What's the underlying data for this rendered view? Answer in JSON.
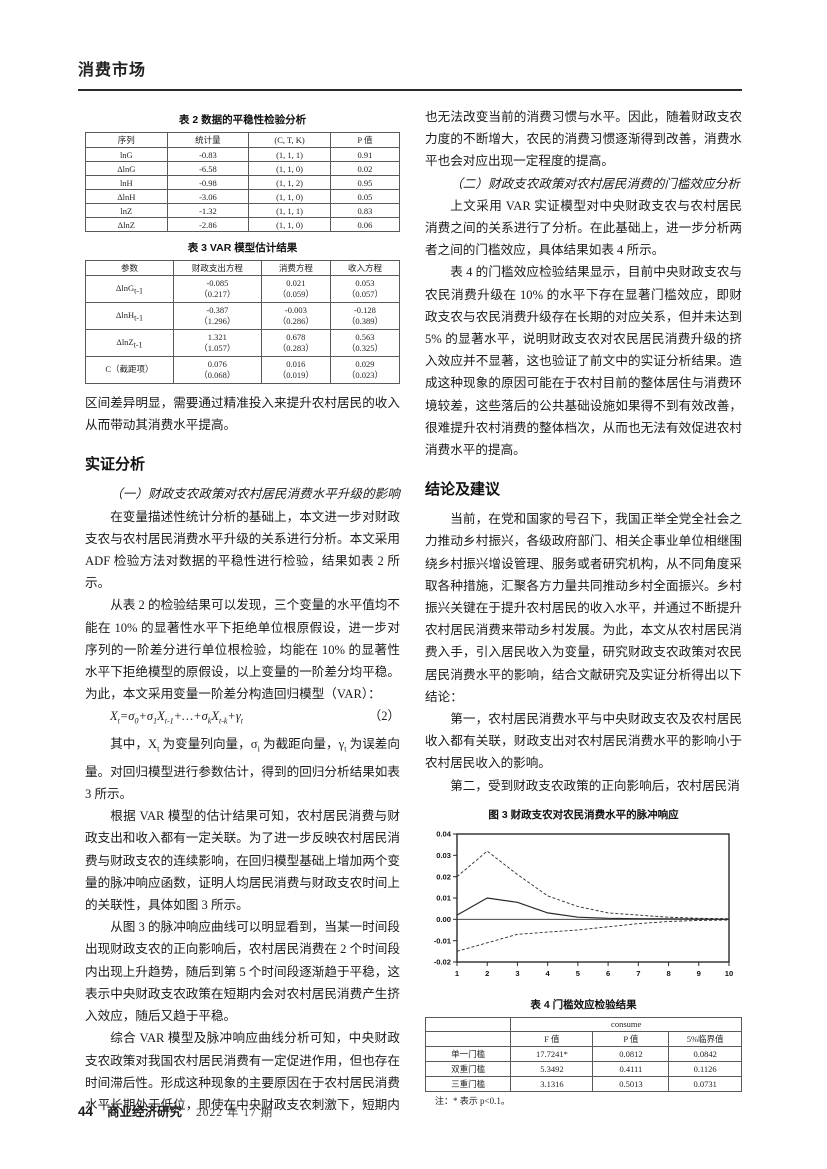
{
  "masthead": "消费市场",
  "footer": {
    "page_number": "44",
    "journal": "商业经济研究",
    "issue": "2022 年 17 期"
  },
  "left": {
    "table2": {
      "caption": "表 2  数据的平稳性检验分析",
      "headers": [
        "序列",
        "统计量",
        "(C, T, K)",
        "P 值"
      ],
      "rows": [
        [
          "lnG",
          "-0.83",
          "(1, 1, 1)",
          "0.91"
        ],
        [
          "ΔlnG",
          "-6.58",
          "(1, 1, 0)",
          "0.02"
        ],
        [
          "lnH",
          "-0.98",
          "(1, 1, 2)",
          "0.95"
        ],
        [
          "ΔlnH",
          "-3.06",
          "(1, 1, 0)",
          "0.05"
        ],
        [
          "lnZ",
          "-1.32",
          "(1, 1, 1)",
          "0.83"
        ],
        [
          "ΔlnZ",
          "-2.86",
          "(1, 1, 0)",
          "0.06"
        ]
      ]
    },
    "table3": {
      "caption": "表 3  VAR 模型估计结果",
      "headers": [
        "参数",
        "财政支出方程",
        "消费方程",
        "收入方程"
      ],
      "rows": [
        {
          "param_base": "ΔlnG",
          "param_sub": "t-1",
          "cells": [
            [
              "-0.085",
              "（0.217）"
            ],
            [
              "0.021",
              "（0.059）"
            ],
            [
              "0.053",
              "（0.057）"
            ]
          ]
        },
        {
          "param_base": "ΔlnH",
          "param_sub": "t-1",
          "cells": [
            [
              "-0.387",
              "（1.296）"
            ],
            [
              "-0.003",
              "（0.286）"
            ],
            [
              "-0.128",
              "（0.389）"
            ]
          ]
        },
        {
          "param_base": "ΔlnZ",
          "param_sub": "t-1",
          "cells": [
            [
              "1.321",
              "（1.057）"
            ],
            [
              "0.678",
              "（0.283）"
            ],
            [
              "0.563",
              "（0.325）"
            ]
          ]
        },
        {
          "param_base": "C（截距项）",
          "param_sub": "",
          "cells": [
            [
              "0.076",
              "（0.068）"
            ],
            [
              "0.016",
              "（0.019）"
            ],
            [
              "0.029",
              "（0.023）"
            ]
          ]
        }
      ]
    },
    "p_cont": "区间差异明显，需要通过精准投入来提升农村居民的收入从而带动其消费水平提高。",
    "heading_empirical": "实证分析",
    "sub1": "（一）财政支农政策对农村居民消费水平升级的影响",
    "p1": "在变量描述性统计分析的基础上，本文进一步对财政支农与农村居民消费水平升级的关系进行分析。本文采用 ADF 检验方法对数据的平稳性进行检验，结果如表 2 所示。",
    "p2": "从表 2 的检验结果可以发现，三个变量的水平值均不能在 10% 的显著性水平下拒绝单位根原假设，进一步对序列的一阶差分进行单位根检验，均能在 10% 的显著性水平下拒绝模型的原假设，以上变量的一阶差分均平稳。为此，本文采用变量一阶差分构造回归模型（VAR）：",
    "formula": {
      "parts": [
        "X",
        "t",
        "=σ",
        "0",
        "+σ",
        "1",
        "X",
        "t-1",
        "+…+σ",
        "k",
        "X",
        "t-k",
        "+γ",
        "t"
      ],
      "number": "（2）"
    },
    "p3": [
      "其中，X",
      "t",
      " 为变量列向量，σ",
      "i",
      " 为截距向量，γ",
      "t",
      " 为误差向量。对回归模型进行参数估计，得到的回归分析结果如表 3 所示。"
    ],
    "p4": "根据 VAR 模型的估计结果可知，农村居民消费与财政支出和收入都有一定关联。为了进一步反映农村居民消费与财政支农的连续影响，在回归模型基础上增加两个变量的脉冲响应函数，证明人均居民消费与财政支农时间上的关联性，具体如图 3 所示。",
    "p5": "从图 3 的脉冲响应曲线可以明显看到，当某一时间段出现财政支农的正向影响后，农村居民消费在 2 个时间段内出现上升趋势，随后到第 5 个时间段逐渐趋于平稳，这表示中央财政支农政策在短期内会对农村居民消费产生挤入效应，随后又趋于平稳。",
    "p6": "综合 VAR 模型及脉冲响应曲线分析可知，中央财政支农政策对我国农村居民消费有一定促进作用，但也存在时间滞后性。形成这种现象的主要原因在于农村居民消费水平长期处于低位，即使在中央财政支农刺激下，短期内"
  },
  "right": {
    "p1": "也无法改变当前的消费习惯与水平。因此，随着财政支农力度的不断增大，农民的消费习惯逐渐得到改善，消费水平也会对应出现一定程度的提高。",
    "sub2": "（二）财政支农政策对农村居民消费的门槛效应分析",
    "p2": "上文采用 VAR 实证模型对中央财政支农与农村居民消费之间的关系进行了分析。在此基础上，进一步分析两者之间的门槛效应，具体结果如表 4 所示。",
    "p3": "表 4 的门槛效应检验结果显示，目前中央财政支农与农民消费升级在 10% 的水平下存在显著门槛效应，即财政支农与农民消费升级存在长期的对应关系，但并未达到 5% 的显著水平，说明财政支农对农民居民消费升级的挤入效应并不显著，这也验证了前文中的实证分析结果。造成这种现象的原因可能在于农村目前的整体居住与消费环境较差，这些落后的公共基础设施如果得不到有效改善，很难提升农村消费的整体档次，从而也无法有效促进农村消费水平的提高。",
    "heading_conclusion": "结论及建议",
    "p4": "当前，在党和国家的号召下，我国正举全党全社会之力推动乡村振兴，各级政府部门、相关企事业单位相继围绕乡村振兴增设管理、服务或者研究机构，从不同角度采取各种措施，汇聚各方力量共同推动乡村全面振兴。乡村振兴关键在于提升农村居民的收入水平，并通过不断提升农村居民消费来带动乡村发展。为此，本文从农村居民消费入手，引入居民收入为变量，研究财政支农政策对农民居民消费水平的影响，结合文献研究及实证分析得出以下结论：",
    "p5": "第一，农村居民消费水平与中央财政支农及农村居民收入都有关联，财政支出对农村居民消费水平的影响小于农村居民收入的影响。",
    "p6": "第二，受到财政支农政策的正向影响后，农村居民消",
    "figure3_caption": "图 3  财政支农对农民消费水平的脉冲响应",
    "table4": {
      "caption": "表 4  门槛效应检验结果",
      "group_header": "consume",
      "headers": [
        "F 值",
        "P 值",
        "5%临界值"
      ],
      "rows": [
        [
          "单一门槛",
          "17.7241*",
          "0.0812",
          "0.0842"
        ],
        [
          "双重门槛",
          "5.3492",
          "0.4111",
          "0.1126"
        ],
        [
          "三重门槛",
          "3.1316",
          "0.5013",
          "0.0731"
        ]
      ],
      "note": "注：* 表示 p<0.1。"
    }
  },
  "chart_data": {
    "type": "line",
    "title": "图 3 财政支农对农民消费水平的脉冲响应",
    "x": [
      1,
      2,
      3,
      4,
      5,
      6,
      7,
      8,
      9,
      10
    ],
    "series": [
      {
        "name": "impulse-response",
        "style": "solid",
        "values": [
          0.002,
          0.01,
          0.008,
          0.003,
          0.001,
          0.0005,
          0.0003,
          0.0002,
          0.0001,
          0.0
        ]
      },
      {
        "name": "upper-confidence-band",
        "style": "dashed",
        "values": [
          0.02,
          0.032,
          0.021,
          0.011,
          0.006,
          0.003,
          0.002,
          0.001,
          0.0005,
          0.0003
        ]
      },
      {
        "name": "lower-confidence-band",
        "style": "dashed",
        "values": [
          -0.015,
          -0.011,
          -0.007,
          -0.006,
          -0.005,
          -0.0035,
          -0.002,
          -0.001,
          -0.0005,
          -0.0003
        ]
      }
    ],
    "ylim": [
      -0.02,
      0.04
    ],
    "yticks": [
      0.04,
      0.03,
      0.02,
      0.01,
      0.0,
      -0.01,
      -0.02
    ],
    "xticks": [
      1,
      2,
      3,
      4,
      5,
      6,
      7,
      8,
      9,
      10
    ],
    "zero_line": true,
    "legend": false,
    "line_color": "#2a2a2a"
  }
}
